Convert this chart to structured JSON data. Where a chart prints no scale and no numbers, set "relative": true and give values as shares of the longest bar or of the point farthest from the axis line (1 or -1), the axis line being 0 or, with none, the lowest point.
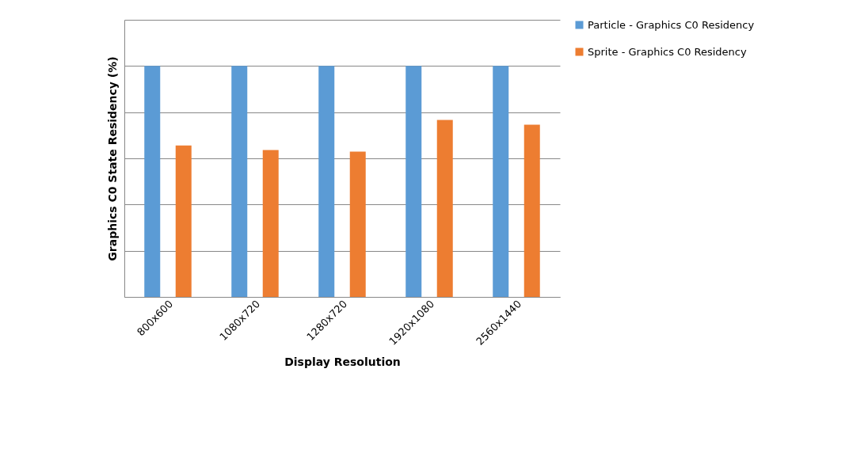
{
  "chart_data": {
    "type": "bar",
    "xlabel": "Display Resolution",
    "ylabel": "Graphics  C0 State Residency  (%)",
    "relative": true,
    "grid": "y",
    "legend": "right",
    "categories": [
      "800x600",
      "1080x720",
      "1280x720",
      "1920x1080",
      "2560x1440"
    ],
    "series": [
      {
        "name": "Particle - Graphics C0 Residency",
        "color": "#5b9bd5",
        "values": [
          1,
          1,
          1,
          1,
          1
        ]
      },
      {
        "name": "Sprite - Graphics C0 Residency",
        "color": "#ed7d31",
        "values": [
          0.656,
          0.636,
          0.629,
          0.766,
          0.746
        ]
      }
    ]
  }
}
